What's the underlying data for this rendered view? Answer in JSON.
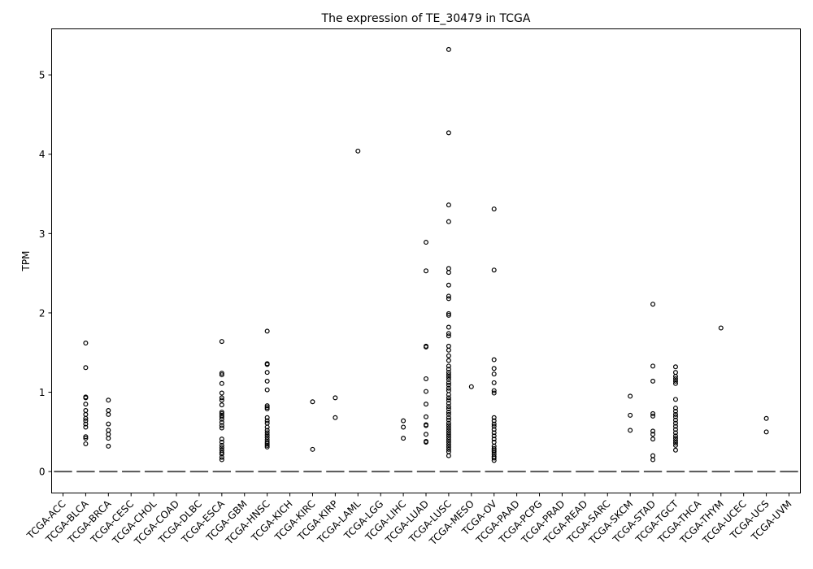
{
  "chart_data": {
    "type": "boxplot",
    "title": "The expression of TE_30479 in TCGA",
    "xlabel": "",
    "ylabel": "TPM",
    "ylim": [
      -0.27,
      5.58
    ],
    "yticks": [
      0,
      1,
      2,
      3,
      4,
      5
    ],
    "grid": false,
    "categories": [
      "TCGA-ACC",
      "TCGA-BLCA",
      "TCGA-BRCA",
      "TCGA-CESC",
      "TCGA-CHOL",
      "TCGA-COAD",
      "TCGA-DLBC",
      "TCGA-ESCA",
      "TCGA-GBM",
      "TCGA-HNSC",
      "TCGA-KICH",
      "TCGA-KIRC",
      "TCGA-KIRP",
      "TCGA-LAML",
      "TCGA-LGG",
      "TCGA-LIHC",
      "TCGA-LUAD",
      "TCGA-LUSC",
      "TCGA-MESO",
      "TCGA-OV",
      "TCGA-PAAD",
      "TCGA-PCPG",
      "TCGA-PRAD",
      "TCGA-READ",
      "TCGA-SARC",
      "TCGA-SKCM",
      "TCGA-STAD",
      "TCGA-TGCT",
      "TCGA-THCA",
      "TCGA-THYM",
      "TCGA-UCEC",
      "TCGA-UCS",
      "TCGA-UVM"
    ],
    "medians": [
      0,
      0,
      0,
      0,
      0,
      0,
      0,
      0,
      0,
      0,
      0,
      0,
      0,
      0,
      0,
      0,
      0,
      0,
      0,
      0,
      0,
      0,
      0,
      0,
      0,
      0,
      0,
      0,
      0,
      0,
      0,
      0,
      0
    ],
    "outliers": [
      [],
      [
        1.62,
        1.31,
        0.94,
        0.93,
        0.85,
        0.77,
        0.72,
        0.67,
        0.64,
        0.6,
        0.56,
        0.44,
        0.42,
        0.35
      ],
      [
        0.9,
        0.77,
        0.72,
        0.6,
        0.52,
        0.47,
        0.42,
        0.32
      ],
      [],
      [],
      [],
      [],
      [
        1.64,
        1.24,
        1.22,
        1.11,
        0.99,
        0.93,
        0.9,
        0.84,
        0.75,
        0.73,
        0.71,
        0.69,
        0.66,
        0.62,
        0.58,
        0.55,
        0.41,
        0.37,
        0.33,
        0.3,
        0.27,
        0.24,
        0.22,
        0.18,
        0.15
      ],
      [],
      [
        1.77,
        1.36,
        1.35,
        1.25,
        1.14,
        1.03,
        0.83,
        0.81,
        0.79,
        0.68,
        0.64,
        0.61,
        0.56,
        0.52,
        0.49,
        0.46,
        0.43,
        0.4,
        0.37,
        0.35,
        0.33,
        0.31
      ],
      [],
      [
        0.88,
        0.28
      ],
      [
        0.93,
        0.68
      ],
      [
        4.04
      ],
      [],
      [
        0.64,
        0.56,
        0.42
      ],
      [
        2.89,
        2.53,
        1.58,
        1.57,
        1.17,
        1.01,
        0.85,
        0.69,
        0.59,
        0.58,
        0.47,
        0.38,
        0.37
      ],
      [
        5.32,
        4.27,
        3.36,
        3.15,
        2.56,
        2.51,
        2.35,
        2.21,
        2.18,
        1.99,
        1.97,
        1.82,
        1.74,
        1.71,
        1.58,
        1.53,
        1.46,
        1.4,
        1.33,
        1.29,
        1.25,
        1.22,
        1.19,
        1.16,
        1.12,
        1.09,
        1.05,
        1.02,
        0.97,
        0.93,
        0.9,
        0.86,
        0.82,
        0.79,
        0.75,
        0.72,
        0.68,
        0.65,
        0.61,
        0.58,
        0.55,
        0.52,
        0.49,
        0.46,
        0.43,
        0.4,
        0.37,
        0.34,
        0.31,
        0.28,
        0.25,
        0.2
      ],
      [
        1.07
      ],
      [
        3.31,
        2.54,
        1.41,
        1.3,
        1.23,
        1.12,
        1.02,
        0.99,
        0.68,
        0.64,
        0.6,
        0.57,
        0.53,
        0.49,
        0.45,
        0.41,
        0.37,
        0.32,
        0.29,
        0.27,
        0.25,
        0.22,
        0.19,
        0.17,
        0.14
      ],
      [],
      [],
      [],
      [],
      [],
      [
        0.95,
        0.71,
        0.52
      ],
      [
        2.11,
        1.33,
        1.14,
        0.73,
        0.7,
        0.51,
        0.47,
        0.41,
        0.2,
        0.15
      ],
      [
        1.32,
        1.25,
        1.2,
        1.17,
        1.14,
        1.11,
        0.91,
        0.8,
        0.76,
        0.72,
        0.69,
        0.65,
        0.61,
        0.57,
        0.53,
        0.49,
        0.45,
        0.42,
        0.39,
        0.36,
        0.33,
        0.27
      ],
      [],
      [
        1.81
      ],
      [],
      [
        0.67,
        0.5
      ],
      []
    ]
  }
}
